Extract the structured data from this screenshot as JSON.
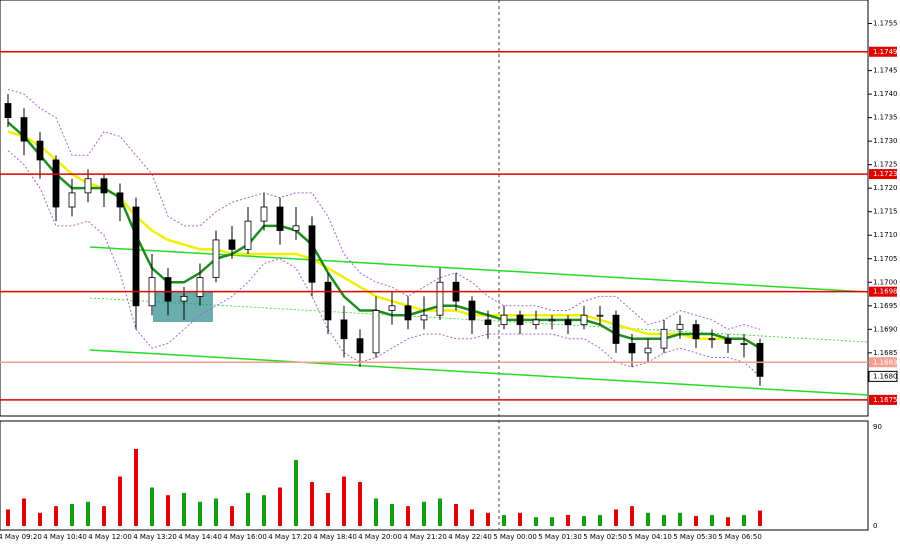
{
  "chart_data": {
    "type": "candlestick",
    "ylim": [
      1.1672,
      1.176
    ],
    "yticks": [
      1.1755,
      1.1745,
      {
        "value": 1.174,
        "label": "1.1740"
      },
      1.1735,
      {
        "value": 1.173,
        "label": "1.1730"
      },
      1.1725,
      {
        "value": 1.172,
        "label": "1.1720"
      },
      1.1715,
      {
        "value": 1.171,
        "label": "1.1710"
      },
      1.1705,
      {
        "value": 1.17,
        "label": "1.1700"
      },
      1.1695,
      {
        "value": 1.169,
        "label": "1.1690"
      },
      1.1685
    ],
    "levels": [
      {
        "value": 1.1749,
        "label": "1.1749",
        "color": "#e00000"
      },
      {
        "value": 1.1723,
        "label": "1.1723",
        "color": "#e00000"
      },
      {
        "value": 1.1698,
        "label": "1.1698",
        "color": "#e00000"
      },
      {
        "value": 1.1683,
        "label": "1.1683",
        "color": "#f4a090"
      },
      {
        "value": 1.1675,
        "label": "1.1675",
        "color": "#e00000"
      }
    ],
    "current_price": {
      "value": 1.168,
      "label": "1.1680"
    },
    "up_color": "#ffffff",
    "down_color": "#000000",
    "candles": [
      [
        1.1738,
        1.174,
        1.1733,
        1.1735
      ],
      [
        1.1735,
        1.1737,
        1.1727,
        1.173
      ],
      [
        1.173,
        1.1732,
        1.1722,
        1.1726
      ],
      [
        1.1726,
        1.1727,
        1.1713,
        1.1716
      ],
      [
        1.1716,
        1.1722,
        1.1714,
        1.1719
      ],
      [
        1.1719,
        1.1724,
        1.1717,
        1.1722
      ],
      [
        1.1722,
        1.1723,
        1.1716,
        1.1719
      ],
      [
        1.1719,
        1.1721,
        1.1713,
        1.1716
      ],
      [
        1.1716,
        1.1718,
        1.169,
        1.1695
      ],
      [
        1.1695,
        1.1706,
        1.1693,
        1.1701
      ],
      [
        1.1701,
        1.1703,
        1.1693,
        1.1696
      ],
      [
        1.1696,
        1.1699,
        1.1692,
        1.1697
      ],
      [
        1.1697,
        1.1704,
        1.1695,
        1.1701
      ],
      [
        1.1701,
        1.1711,
        1.17,
        1.1709
      ],
      [
        1.1709,
        1.1712,
        1.1705,
        1.1707
      ],
      [
        1.1707,
        1.1716,
        1.1706,
        1.1713
      ],
      [
        1.1713,
        1.1719,
        1.1711,
        1.1716
      ],
      [
        1.1716,
        1.1718,
        1.1708,
        1.1711
      ],
      [
        1.1711,
        1.1716,
        1.1709,
        1.1712
      ],
      [
        1.1712,
        1.1714,
        1.1697,
        1.17
      ],
      [
        1.17,
        1.1702,
        1.1689,
        1.1692
      ],
      [
        1.1692,
        1.1695,
        1.1684,
        1.1688
      ],
      [
        1.1688,
        1.169,
        1.1682,
        1.1685
      ],
      [
        1.1685,
        1.1697,
        1.1684,
        1.1694
      ],
      [
        1.1694,
        1.1698,
        1.1691,
        1.1695
      ],
      [
        1.1695,
        1.1697,
        1.169,
        1.1692
      ],
      [
        1.1692,
        1.1697,
        1.169,
        1.1693
      ],
      [
        1.1693,
        1.1703,
        1.1692,
        1.17
      ],
      [
        1.17,
        1.1702,
        1.1694,
        1.1696
      ],
      [
        1.1696,
        1.1697,
        1.1689,
        1.1692
      ],
      [
        1.1692,
        1.1694,
        1.1688,
        1.1691
      ],
      [
        1.1691,
        1.1695,
        1.169,
        1.1693
      ],
      [
        1.1693,
        1.1694,
        1.1689,
        1.1691
      ],
      [
        1.1691,
        1.1694,
        1.169,
        1.1692
      ],
      [
        1.1692,
        1.1693,
        1.169,
        1.1692
      ],
      [
        1.1692,
        1.1693,
        1.1689,
        1.1691
      ],
      [
        1.1691,
        1.1695,
        1.169,
        1.1693
      ],
      [
        1.1693,
        1.1695,
        1.1691,
        1.1693
      ],
      [
        1.1693,
        1.1694,
        1.1685,
        1.1687
      ],
      [
        1.1687,
        1.1689,
        1.1682,
        1.1685
      ],
      [
        1.1685,
        1.1688,
        1.1683,
        1.1686
      ],
      [
        1.1686,
        1.1692,
        1.1685,
        1.169
      ],
      [
        1.169,
        1.1693,
        1.1688,
        1.1691
      ],
      [
        1.1691,
        1.1692,
        1.1686,
        1.1688
      ],
      [
        1.1688,
        1.169,
        1.1686,
        1.1688
      ],
      [
        1.1688,
        1.1689,
        1.1685,
        1.1687
      ],
      [
        1.1687,
        1.1689,
        1.1684,
        1.1687
      ],
      [
        1.1687,
        1.1688,
        1.1678,
        1.168
      ]
    ],
    "lines": [
      {
        "name": "ma-slow",
        "color": "#f0f000",
        "width": 2.5,
        "dash": "",
        "values": [
          1.1732,
          1.1731,
          1.1729,
          1.1726,
          1.1723,
          1.1721,
          1.172,
          1.1718,
          1.1714,
          1.1711,
          1.1709,
          1.1708,
          1.1707,
          1.1707,
          1.1706,
          1.1706,
          1.1706,
          1.1706,
          1.1706,
          1.1705,
          1.1703,
          1.1701,
          1.1699,
          1.1697,
          1.1696,
          1.1695,
          1.1694,
          1.1694,
          1.1694,
          1.1693,
          1.1693,
          1.1693,
          1.1693,
          1.1693,
          1.1693,
          1.1693,
          1.1693,
          1.1692,
          1.1691,
          1.169,
          1.1689,
          1.1689,
          1.1689,
          1.1688,
          1.1688,
          1.1688,
          1.1688,
          1.1686
        ]
      },
      {
        "name": "ma-fast",
        "color": "#1e8c1e",
        "width": 2.5,
        "dash": "",
        "values": [
          1.1734,
          1.1731,
          1.1727,
          1.1723,
          1.172,
          1.172,
          1.172,
          1.1718,
          1.171,
          1.1703,
          1.17,
          1.17,
          1.1702,
          1.1705,
          1.1706,
          1.1708,
          1.1712,
          1.1712,
          1.1711,
          1.1708,
          1.1702,
          1.1697,
          1.1694,
          1.1694,
          1.1693,
          1.1693,
          1.1694,
          1.1695,
          1.1695,
          1.1694,
          1.1693,
          1.1692,
          1.1692,
          1.1692,
          1.1692,
          1.1692,
          1.1692,
          1.1691,
          1.1689,
          1.1688,
          1.1688,
          1.1688,
          1.1689,
          1.1689,
          1.1689,
          1.1688,
          1.1688,
          1.1686
        ]
      },
      {
        "name": "band-upper",
        "color": "#b060d0",
        "width": 1,
        "dash": "2 2",
        "values": [
          1.1741,
          1.174,
          1.1737,
          1.1735,
          1.1727,
          1.1727,
          1.1732,
          1.1731,
          1.1727,
          1.1723,
          1.1714,
          1.1712,
          1.1712,
          1.1715,
          1.1717,
          1.1718,
          1.1719,
          1.1718,
          1.1719,
          1.1719,
          1.1714,
          1.1706,
          1.1702,
          1.17,
          1.1699,
          1.1697,
          1.1699,
          1.1701,
          1.1702,
          1.17,
          1.1697,
          1.1695,
          1.1695,
          1.1695,
          1.1694,
          1.1694,
          1.1696,
          1.1697,
          1.1697,
          1.1694,
          1.1691,
          1.1692,
          1.1694,
          1.1693,
          1.1692,
          1.169,
          1.1691,
          1.169
        ]
      },
      {
        "name": "band-lower",
        "color": "#b060d0",
        "width": 1,
        "dash": "2 2",
        "values": [
          1.1728,
          1.1725,
          1.172,
          1.1712,
          1.1712,
          1.1713,
          1.171,
          1.1702,
          1.169,
          1.1686,
          1.1687,
          1.169,
          1.1693,
          1.1695,
          1.1697,
          1.17,
          1.1704,
          1.1705,
          1.1703,
          1.1697,
          1.169,
          1.1685,
          1.1683,
          1.1684,
          1.1686,
          1.1688,
          1.1689,
          1.1689,
          1.1688,
          1.1688,
          1.1689,
          1.1689,
          1.1689,
          1.1689,
          1.1689,
          1.1688,
          1.1688,
          1.1686,
          1.1683,
          1.1682,
          1.1683,
          1.1685,
          1.1686,
          1.1685,
          1.1684,
          1.1684,
          1.1683,
          1.168
        ]
      }
    ],
    "volume": {
      "ylim": [
        0,
        90
      ],
      "yticks": [
        0,
        90
      ],
      "values": [
        15,
        25,
        12,
        18,
        20,
        22,
        18,
        45,
        70,
        35,
        28,
        30,
        22,
        25,
        18,
        30,
        28,
        35,
        60,
        40,
        30,
        45,
        40,
        25,
        20,
        18,
        22,
        25,
        20,
        15,
        12,
        10,
        12,
        8,
        8,
        10,
        9,
        10,
        15,
        18,
        12,
        10,
        12,
        9,
        10,
        8,
        10,
        14
      ],
      "up_color": "#10a010",
      "down_color": "#e00000"
    },
    "xtick_labels": [
      "4 May 09:20",
      "4 May 10:40",
      "4 May 12:00",
      "4 May 13:20",
      "4 May 14:40",
      "4 May 16:00",
      "4 May 17:20",
      "4 May 18:40",
      "4 May 20:00",
      "4 May 21:20",
      "4 May 22:40",
      "5 May 00:00",
      "5 May 01:30",
      "5 May 02:50",
      "5 May 04:10",
      "5 May 05:30",
      "5 May 06:50"
    ]
  }
}
